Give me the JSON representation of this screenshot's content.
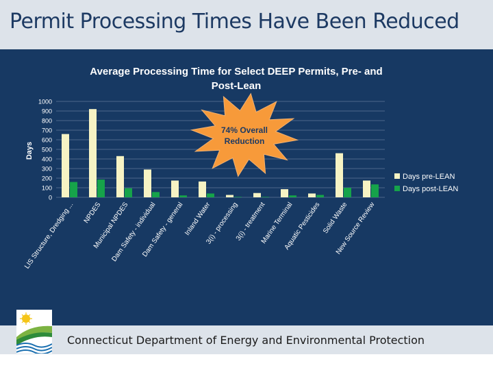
{
  "slide": {
    "title": "Permit Processing Times Have Been Reduced",
    "footer": "Connecticut Department of Energy and Environmental Protection",
    "logo_icon": "deep-sun-waves-logo-icon"
  },
  "colors": {
    "panel": "#173963",
    "pre": "#f6f3c4",
    "post": "#16a34a",
    "grid": "#5f7898",
    "starburst": "#f79a3a",
    "text": "#ffffff"
  },
  "chart_data": {
    "type": "bar",
    "title_lines": [
      "Average Processing Time for Select DEEP Permits, Pre- and",
      "Post-Lean"
    ],
    "ylabel": "Days",
    "xlabel": "",
    "ylim": [
      0,
      1000
    ],
    "yticks": [
      0,
      100,
      200,
      300,
      400,
      500,
      600,
      700,
      800,
      900,
      1000
    ],
    "grid": true,
    "legend_position": "right",
    "categories": [
      "LIS Structure, Dredging ...",
      "NPDES",
      "Municipal NPDES",
      "Dam Safety - individual",
      "Dam Safety - general",
      "Inland Water",
      "3(i) - processing",
      "3(i) - treatment",
      "Marine Terminal",
      "Aquatic Pesticides",
      "Solid Waste",
      "New Source Review"
    ],
    "series": [
      {
        "name": "Days pre-LEAN",
        "values": [
          660,
          920,
          430,
          290,
          175,
          165,
          25,
          45,
          85,
          40,
          460,
          175
        ]
      },
      {
        "name": "Days post-LEAN",
        "values": [
          160,
          185,
          95,
          55,
          20,
          40,
          5,
          5,
          20,
          25,
          100,
          135
        ]
      }
    ],
    "annotation": {
      "lines": [
        "74% Overall",
        "Reduction"
      ]
    }
  }
}
